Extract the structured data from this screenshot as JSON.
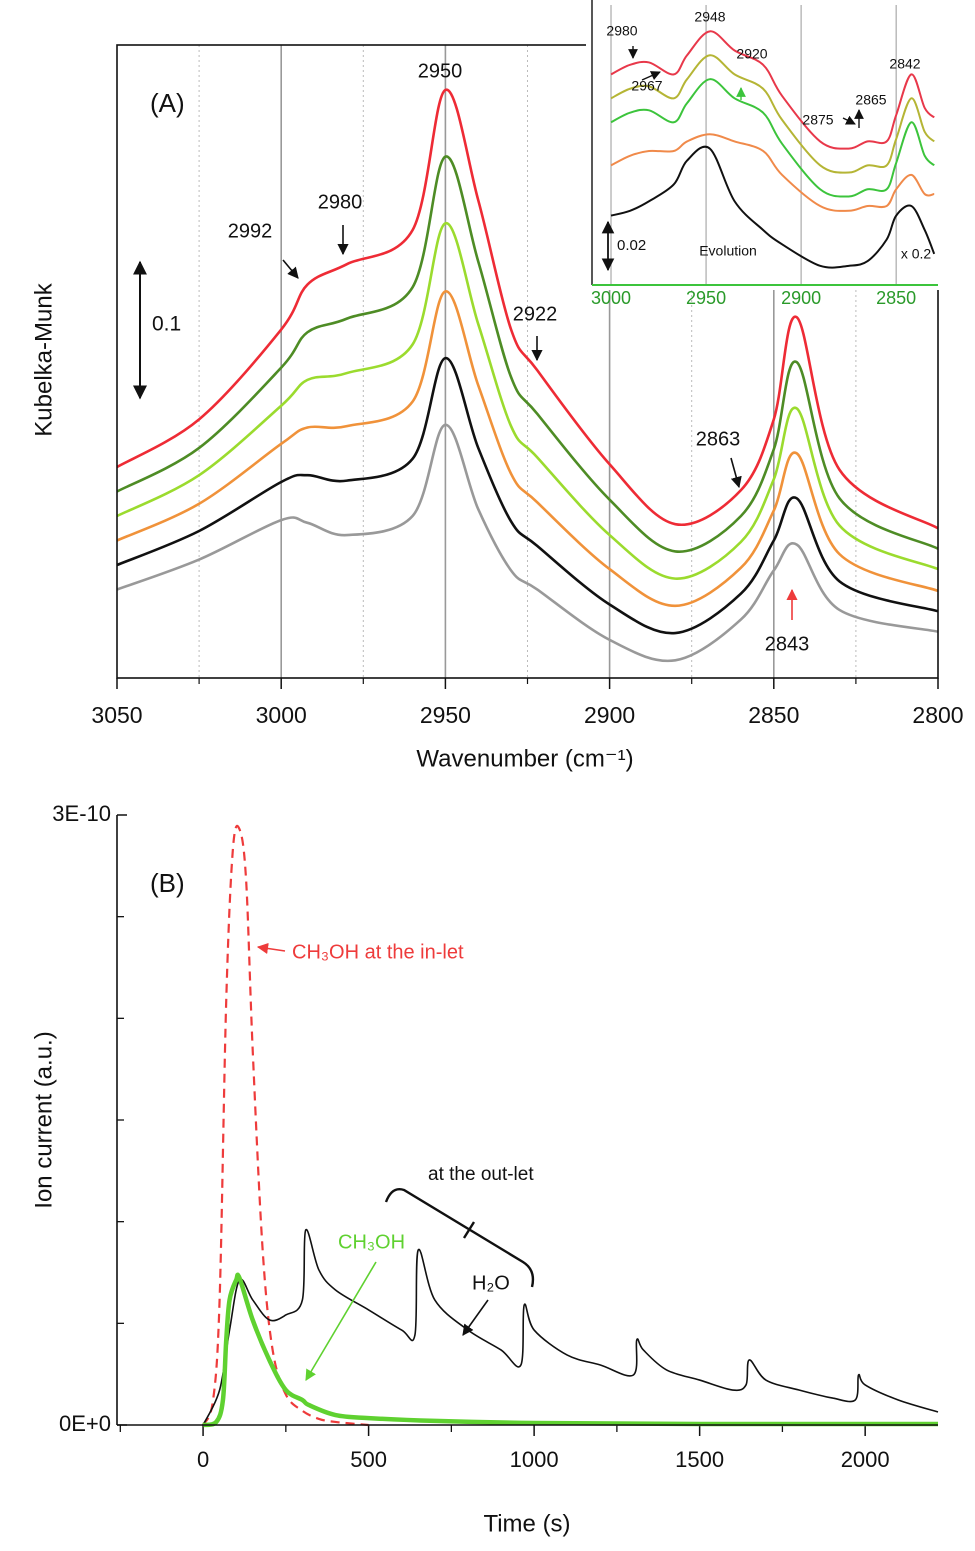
{
  "chart_data": [
    {
      "type": "line",
      "x_label": "Wavenumber (cm⁻¹)",
      "y_label": "Kubelka-Munk",
      "x": [
        3050,
        3025,
        3000,
        2992,
        2980,
        2960,
        2950,
        2940,
        2930,
        2922,
        2900,
        2880,
        2860,
        2850,
        2843,
        2830,
        2800
      ],
      "series": [
        {
          "color": "#999999",
          "values": [
            0.065,
            0.087,
            0.116,
            0.114,
            0.105,
            0.119,
            0.186,
            0.124,
            0.079,
            0.065,
            0.028,
            0.013,
            0.043,
            0.079,
            0.098,
            0.05,
            0.034
          ]
        },
        {
          "color": "#111111",
          "values": [
            0.083,
            0.108,
            0.144,
            0.149,
            0.145,
            0.161,
            0.235,
            0.169,
            0.115,
            0.097,
            0.054,
            0.033,
            0.062,
            0.101,
            0.132,
            0.071,
            0.049
          ]
        },
        {
          "color": "#f0923a",
          "values": [
            0.101,
            0.128,
            0.172,
            0.184,
            0.185,
            0.203,
            0.284,
            0.215,
            0.15,
            0.129,
            0.08,
            0.053,
            0.081,
            0.123,
            0.165,
            0.091,
            0.064
          ]
        },
        {
          "color": "#9bdb2e",
          "values": [
            0.119,
            0.149,
            0.2,
            0.219,
            0.224,
            0.245,
            0.334,
            0.26,
            0.185,
            0.162,
            0.105,
            0.073,
            0.1,
            0.146,
            0.198,
            0.112,
            0.08
          ]
        },
        {
          "color": "#4e8c25",
          "values": [
            0.137,
            0.169,
            0.228,
            0.254,
            0.264,
            0.287,
            0.383,
            0.306,
            0.221,
            0.194,
            0.131,
            0.093,
            0.119,
            0.168,
            0.232,
            0.132,
            0.095
          ]
        },
        {
          "color": "#ee2b35",
          "values": [
            0.155,
            0.19,
            0.256,
            0.289,
            0.304,
            0.329,
            0.432,
            0.351,
            0.256,
            0.226,
            0.157,
            0.113,
            0.138,
            0.19,
            0.265,
            0.153,
            0.11
          ]
        }
      ],
      "xlim": [
        3050,
        2800
      ],
      "ylim": [
        0,
        0.465
      ],
      "xticks": [
        3050,
        3000,
        2950,
        2900,
        2850,
        2800
      ],
      "xminorticks": [
        3025,
        2975,
        2925,
        2875,
        2825
      ],
      "grid": true,
      "scale_bar": 0.1,
      "annotations": [
        "(A)",
        "2950",
        "2992",
        "2980",
        "2922",
        "2863",
        "2843"
      ]
    },
    {
      "type": "line",
      "x": [
        3000,
        2990,
        2980,
        2967,
        2960,
        2948,
        2935,
        2920,
        2910,
        2890,
        2875,
        2865,
        2855,
        2850,
        2842,
        2835,
        2830
      ],
      "series": [
        {
          "color": "#111111",
          "values": [
            0.029,
            0.031,
            0.035,
            0.042,
            0.052,
            0.057,
            0.035,
            0.023,
            0.017,
            0.008,
            0.008,
            0.01,
            0.019,
            0.029,
            0.033,
            0.023,
            0.013
          ]
        },
        {
          "color": "#f08a4a",
          "values": [
            0.05,
            0.054,
            0.056,
            0.056,
            0.06,
            0.063,
            0.06,
            0.056,
            0.046,
            0.033,
            0.031,
            0.033,
            0.033,
            0.04,
            0.046,
            0.038,
            0.038
          ]
        },
        {
          "color": "#3cc43c",
          "values": [
            0.068,
            0.072,
            0.073,
            0.068,
            0.076,
            0.086,
            0.078,
            0.072,
            0.059,
            0.04,
            0.037,
            0.04,
            0.04,
            0.051,
            0.068,
            0.054,
            0.05
          ]
        },
        {
          "color": "#b5b535",
          "values": [
            0.078,
            0.082,
            0.083,
            0.078,
            0.086,
            0.096,
            0.088,
            0.082,
            0.069,
            0.05,
            0.047,
            0.05,
            0.05,
            0.061,
            0.078,
            0.064,
            0.06
          ]
        },
        {
          "color": "#e8384a",
          "values": [
            0.088,
            0.092,
            0.093,
            0.088,
            0.096,
            0.106,
            0.098,
            0.092,
            0.079,
            0.06,
            0.057,
            0.06,
            0.06,
            0.071,
            0.088,
            0.074,
            0.07
          ]
        }
      ],
      "xlim": [
        3010,
        2828
      ],
      "ylim": [
        0,
        0.117
      ],
      "xticks": [
        3000,
        2950,
        2900,
        2850
      ],
      "grid": true,
      "scale_bar": 0.02,
      "annotations": [
        "2980",
        "2948",
        "2920",
        "2967",
        "2875",
        "2865",
        "2842",
        "Evolution",
        "x 0.2"
      ]
    },
    {
      "type": "line",
      "x_label": "Time (s)",
      "y_label": "Ion current (a.u.)",
      "series": [
        {
          "name": "CH₃OH at the in-let",
          "color": "#ee3b3b",
          "linestyle": "dashed",
          "x": [
            0,
            30,
            50,
            70,
            90,
            110,
            130,
            150,
            180,
            210,
            250,
            300,
            350,
            400,
            500
          ],
          "values": [
            0,
            1.2e-11,
            6.2e-11,
            2.09e-10,
            2.83e-10,
            2.93e-10,
            2.68e-10,
            1.84e-10,
            8.6e-11,
            3.7e-11,
            1.5e-11,
            7e-12,
            3e-12,
            1.5e-12,
            0
          ]
        },
        {
          "name": "H₂O",
          "color": "#111111",
          "linestyle": "solid",
          "x": [
            0,
            50,
            80,
            110,
            150,
            200,
            250,
            300,
            310,
            350,
            400,
            500,
            600,
            640,
            650,
            700,
            800,
            900,
            960,
            970,
            1000,
            1100,
            1200,
            1300,
            1310,
            1330,
            1400,
            1500,
            1600,
            1640,
            1650,
            1700,
            1800,
            1900,
            1970,
            1980,
            2000,
            2100,
            2220
          ],
          "values": [
            0,
            1.72e-11,
            4.67e-11,
            7.13e-11,
            6.15e-11,
            5.17e-11,
            5.41e-11,
            6.15e-11,
            9.59e-11,
            7.62e-11,
            6.64e-11,
            5.66e-11,
            4.67e-11,
            4.43e-11,
            8.61e-11,
            6.15e-11,
            4.67e-11,
            3.69e-11,
            2.95e-11,
            5.9e-11,
            4.67e-11,
            3.44e-11,
            2.95e-11,
            2.46e-11,
            4.18e-11,
            3.69e-11,
            2.71e-11,
            2.21e-11,
            1.72e-11,
            1.97e-11,
            3.2e-11,
            2.21e-11,
            1.72e-11,
            1.33e-11,
            1.23e-11,
            2.46e-11,
            1.97e-11,
            1.23e-11,
            6.4e-12
          ]
        },
        {
          "name": "CH₃OH",
          "color": "#5fd130",
          "linestyle": "thick",
          "x": [
            0,
            40,
            60,
            70,
            80,
            100,
            110,
            150,
            200,
            250,
            300,
            320,
            400,
            500,
            700,
            1000,
            1500,
            2220
          ],
          "values": [
            0,
            1.5e-12,
            1.23e-11,
            4.18e-11,
            6.15e-11,
            7.13e-11,
            7.23e-11,
            5.16e-11,
            3.2e-11,
            1.72e-11,
            1.23e-11,
            9.8e-12,
            4.9e-12,
            3.4e-12,
            2e-12,
            1e-12,
            5e-13,
            5e-13
          ]
        }
      ],
      "xlim": [
        -260,
        2220
      ],
      "ylim": [
        0,
        3e-10
      ],
      "xticks": [
        0,
        500,
        1000,
        1500,
        2000
      ],
      "xminorticks": [
        -250,
        250,
        750,
        1250,
        1750
      ],
      "yticks": [
        {
          "value": 0,
          "label": "0E+0"
        },
        {
          "value": 3e-10,
          "label": "3E-10"
        }
      ],
      "yminorticks": [
        5e-11,
        1e-10,
        1.5e-10,
        2e-10,
        2.5e-10
      ],
      "annotations": [
        "(B)",
        "at the out-let"
      ]
    }
  ]
}
